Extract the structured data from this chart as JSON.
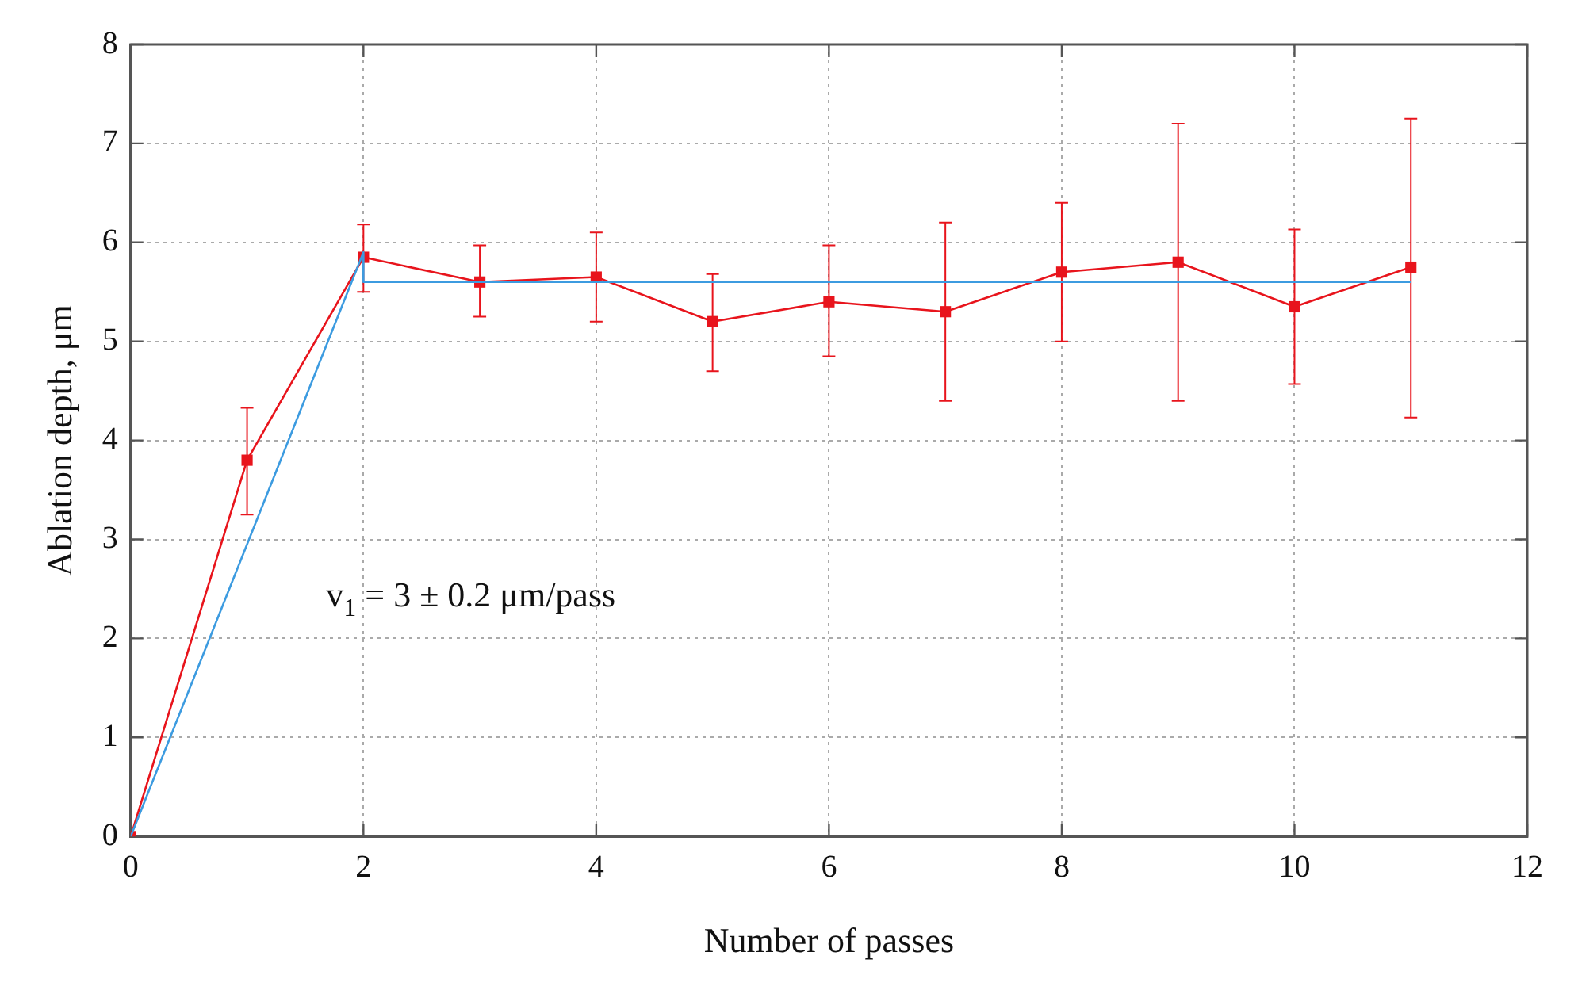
{
  "chart_data": {
    "type": "line",
    "xlabel": "Number of passes",
    "ylabel": "Ablation depth, μm",
    "xlim": [
      0,
      12
    ],
    "xticks": [
      0,
      2,
      4,
      6,
      8,
      10,
      12
    ],
    "ylim": [
      0,
      8
    ],
    "yticks": [
      0,
      1,
      2,
      3,
      4,
      5,
      6,
      7,
      8
    ],
    "grid": true,
    "legend": false,
    "series": [
      {
        "type": "line",
        "color": "#3c9be0",
        "marker": "none",
        "x": [
          0,
          2,
          2,
          11
        ],
        "values": [
          0,
          5.9,
          5.6,
          5.6
        ]
      },
      {
        "type": "line",
        "color": "#e8141c",
        "marker": "square",
        "x": [
          0,
          1,
          2,
          3,
          4,
          5,
          6,
          7,
          8,
          9,
          10,
          11
        ],
        "values": [
          0,
          3.8,
          5.85,
          5.6,
          5.65,
          5.2,
          5.4,
          5.3,
          5.7,
          5.8,
          5.35,
          5.75
        ],
        "errors": [
          null,
          [
            3.25,
            4.33
          ],
          [
            5.5,
            6.18
          ],
          [
            5.25,
            5.97
          ],
          [
            5.2,
            6.1
          ],
          [
            4.7,
            5.68
          ],
          [
            4.85,
            5.97
          ],
          [
            4.4,
            6.2
          ],
          [
            5.0,
            6.4
          ],
          [
            4.4,
            7.2
          ],
          [
            4.57,
            6.13
          ],
          [
            4.23,
            7.25
          ]
        ]
      }
    ],
    "annotations": [
      "v$_{1}$ = 3 ± 0.2 μm/pass"
    ]
  }
}
